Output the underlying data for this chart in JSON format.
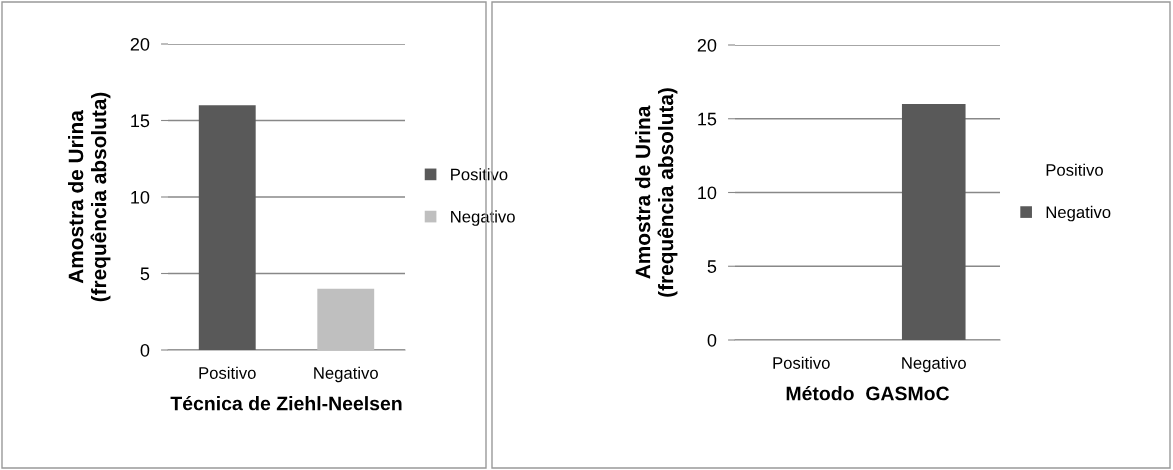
{
  "chart_data": [
    {
      "type": "bar",
      "categories": [
        "Positivo",
        "Negativo"
      ],
      "series": [
        {
          "name": "Positivo",
          "color": "#595959",
          "values": [
            16,
            null
          ]
        },
        {
          "name": "Negativo",
          "color": "#bfbfbf",
          "values": [
            null,
            4
          ]
        }
      ],
      "ylim": [
        0,
        20
      ],
      "yticks": [
        0,
        5,
        10,
        15,
        20
      ],
      "ylabel": "Amostra de Urina\n(frequência absoluta)",
      "xlabel": "Técnica de Ziehl-Neelsen",
      "grid": "y",
      "legend": "right"
    },
    {
      "type": "bar",
      "categories": [
        "Positivo",
        "Negativo"
      ],
      "series": [
        {
          "name": "Positivo",
          "values": [
            0,
            null
          ]
        },
        {
          "name": "Negativo",
          "color": "#595959",
          "values": [
            null,
            16
          ]
        }
      ],
      "ylim": [
        0,
        20
      ],
      "yticks": [
        0,
        5,
        10,
        15,
        20
      ],
      "ylabel": "Amostra de Urina\n(frequência absoluta)",
      "xlabel": "Método  GASMoC",
      "grid": "y",
      "legend": "right"
    }
  ]
}
